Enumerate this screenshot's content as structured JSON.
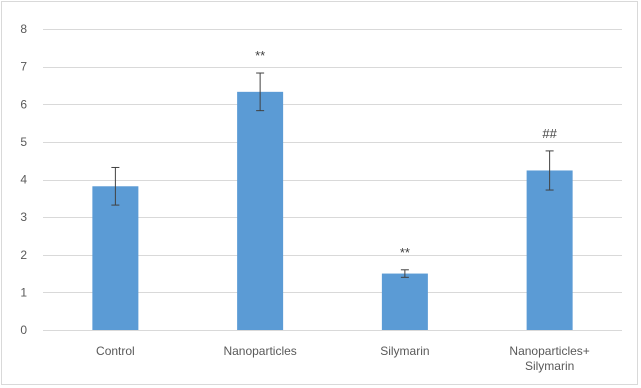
{
  "chart_data": {
    "type": "bar",
    "categories": [
      "Control",
      "Nanoparticles",
      "Silymarin",
      "Nanoparticles+ Silymarin"
    ],
    "category_lines": [
      [
        "Control"
      ],
      [
        "Nanoparticles"
      ],
      [
        "Silymarin"
      ],
      [
        "Nanoparticles+",
        "Silymarin"
      ]
    ],
    "values": [
      3.82,
      6.33,
      1.5,
      4.24
    ],
    "errors": [
      0.5,
      0.5,
      0.1,
      0.52
    ],
    "annotations": [
      "",
      "**",
      "**",
      "##"
    ],
    "yticks": [
      0,
      1,
      2,
      3,
      4,
      5,
      6,
      7,
      8
    ],
    "ylim": [
      0,
      8
    ],
    "title": "",
    "xlabel": "",
    "ylabel": "",
    "grid": true,
    "bar_color": "#5b9bd5",
    "grid_color": "#d9d9d9",
    "error_bar_color": "#404040"
  }
}
